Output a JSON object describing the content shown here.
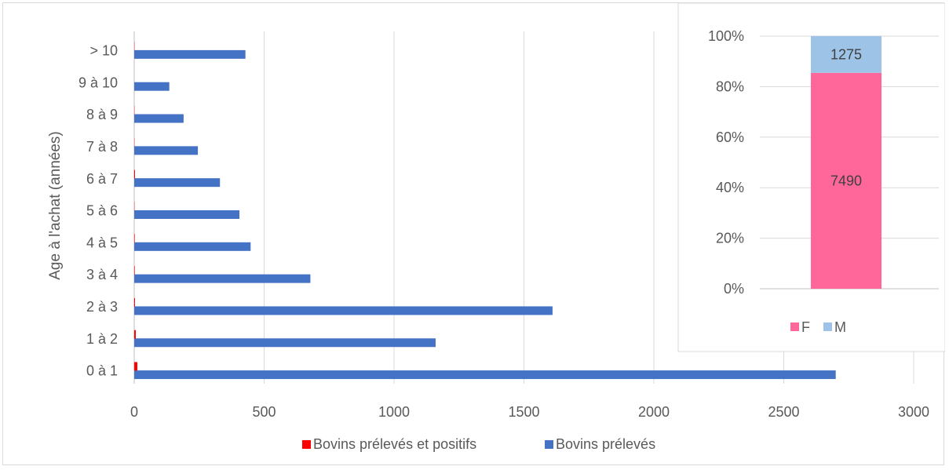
{
  "chart_data": [
    {
      "type": "bar",
      "orientation": "horizontal",
      "categories": [
        "0 à 1",
        "1 à 2",
        "2 à 3",
        "3 à 4",
        "4 à 5",
        "5 à 6",
        "6 à 7",
        "7 à 8",
        "8 à 9",
        "9 à 10",
        "> 10"
      ],
      "series": [
        {
          "name": "Bovins prélevés et positifs",
          "color": "#ff0000",
          "values": [
            12,
            6,
            3,
            2,
            2,
            1,
            3,
            1,
            1,
            0,
            1
          ]
        },
        {
          "name": "Bovins prélevés",
          "color": "#4472c4",
          "values": [
            2700,
            1160,
            1610,
            678,
            448,
            405,
            330,
            245,
            190,
            135,
            428
          ]
        }
      ],
      "ylabel": "Age à l'achat (années)",
      "xlim": [
        0,
        3000
      ],
      "xticks": [
        "0",
        "500",
        "1000",
        "1500",
        "2000",
        "2500",
        "3000"
      ],
      "grid": true,
      "legend": "bottom"
    },
    {
      "type": "bar",
      "stacked": "percent",
      "series": [
        {
          "name": "F",
          "color": "#ff6699",
          "values": [
            7490
          ]
        },
        {
          "name": "M",
          "color": "#9dc3e6",
          "values": [
            1275
          ]
        }
      ],
      "data_labels": [
        "7490",
        "1275"
      ],
      "ylim": [
        0,
        100
      ],
      "yticks": [
        "0%",
        "20%",
        "40%",
        "60%",
        "80%",
        "100%"
      ],
      "grid": true,
      "legend": "bottom"
    }
  ]
}
